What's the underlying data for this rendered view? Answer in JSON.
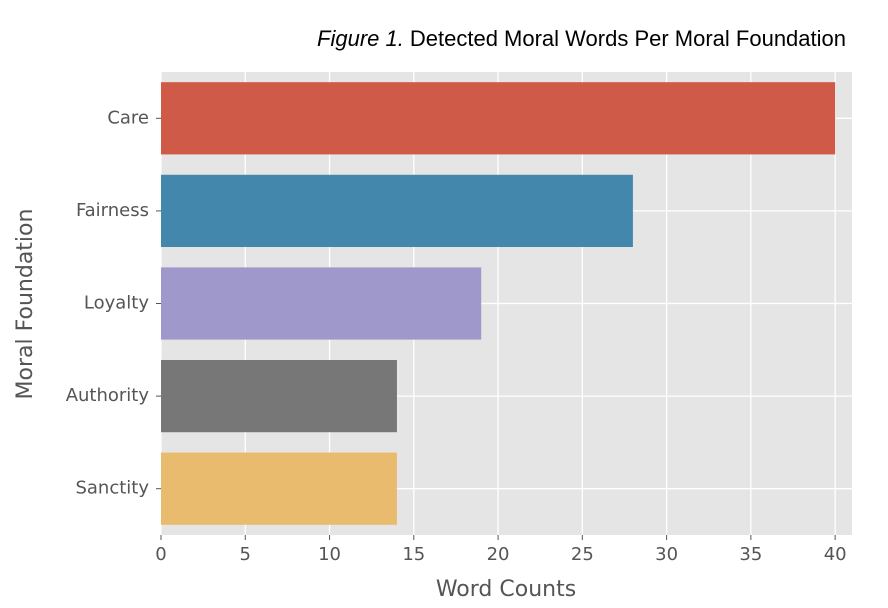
{
  "chart_data": {
    "type": "barh",
    "figure_label": "Figure 1.",
    "title": "Detected Moral Words Per Moral Foundation",
    "x_label": "Word Counts",
    "y_label": "Moral Foundation",
    "categories": [
      "Care",
      "Fairness",
      "Loyalty",
      "Authority",
      "Sanctity"
    ],
    "values": [
      40,
      28,
      19,
      14,
      14
    ],
    "colors": [
      "#cf5a48",
      "#4387ad",
      "#9f98cb",
      "#777777",
      "#e9bb6e"
    ],
    "xlim": [
      0,
      41
    ],
    "xticks": [
      0,
      5,
      10,
      15,
      20,
      25,
      30,
      35,
      40
    ],
    "grid": true
  }
}
